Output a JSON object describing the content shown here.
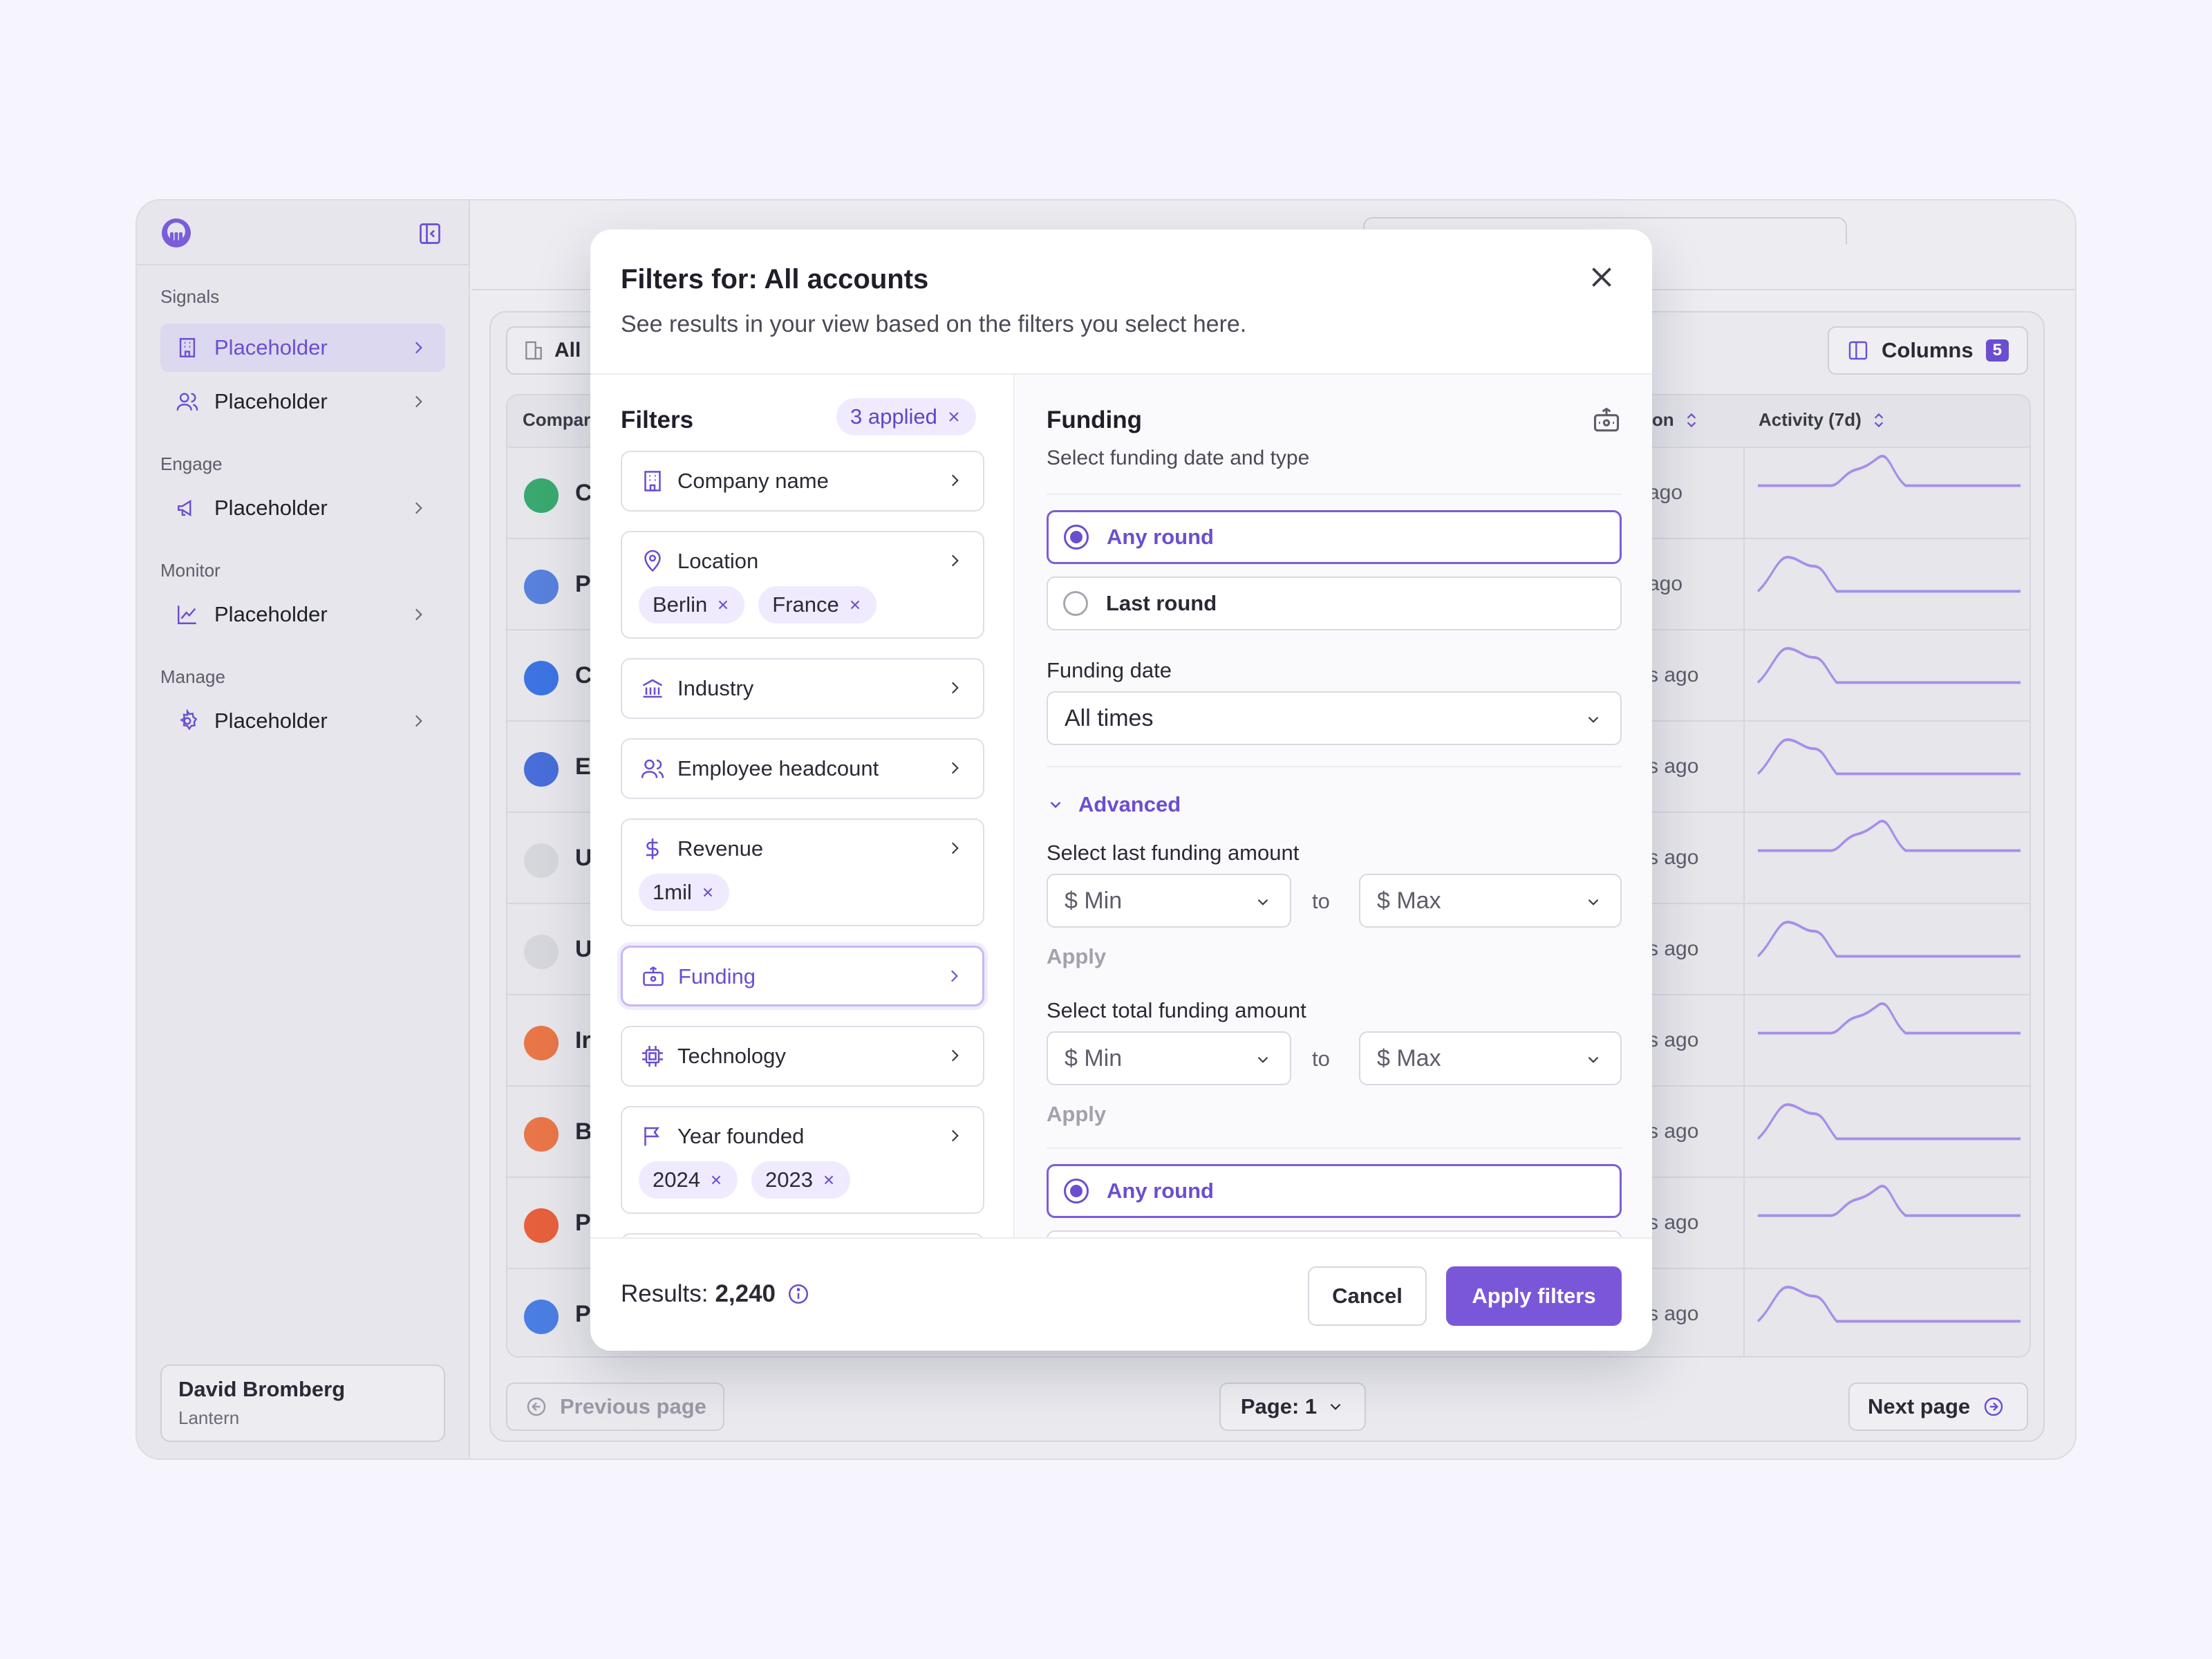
{
  "colors": {
    "accent": "#6b4ed0",
    "accent_soft": "#efeafd",
    "spark": "#a78ee8"
  },
  "sidebar": {
    "sections": [
      {
        "title": "Signals",
        "items": [
          {
            "label": "Placeholder",
            "icon": "building-icon",
            "active": true
          },
          {
            "label": "Placeholder",
            "icon": "users-icon"
          }
        ]
      },
      {
        "title": "Engage",
        "items": [
          {
            "label": "Placeholder",
            "icon": "megaphone-icon"
          }
        ]
      },
      {
        "title": "Monitor",
        "items": [
          {
            "label": "Placeholder",
            "icon": "chart-line-icon"
          }
        ]
      },
      {
        "title": "Manage",
        "items": [
          {
            "label": "Placeholder",
            "icon": "settings-icon"
          }
        ]
      }
    ],
    "user": {
      "name": "David Bromberg",
      "org": "Lantern"
    }
  },
  "background": {
    "view_label": "All",
    "columns_label": "Columns",
    "columns_count": "5",
    "headers": {
      "company": "Compar",
      "location": "tion",
      "activity": "Activity (7d)"
    },
    "rows": [
      {
        "initial": "C",
        "ago": "ago"
      },
      {
        "initial": "P",
        "ago": "ago"
      },
      {
        "initial": "C",
        "ago": "s ago"
      },
      {
        "initial": "E",
        "ago": "s ago"
      },
      {
        "initial": "U",
        "ago": "s ago"
      },
      {
        "initial": "U",
        "ago": "s ago"
      },
      {
        "initial": "Ir",
        "ago": "s ago"
      },
      {
        "initial": "B",
        "ago": "s ago"
      },
      {
        "initial": "P",
        "ago": "s ago"
      },
      {
        "initial": "P",
        "ago": "s ago"
      }
    ],
    "prev_page": "Previous page",
    "page": "Page: 1",
    "next_page": "Next page"
  },
  "modal": {
    "title": "Filters for: All accounts",
    "subtitle": "See results in your view based on the filters you select here.",
    "filters_title": "Filters",
    "applied": "3 applied",
    "filters": [
      {
        "label": "Company name",
        "icon": "building-icon",
        "tags": []
      },
      {
        "label": "Location",
        "icon": "map-pin-icon",
        "tags": [
          "Berlin",
          "France"
        ]
      },
      {
        "label": "Industry",
        "icon": "bank-icon",
        "tags": []
      },
      {
        "label": "Employee headcount",
        "icon": "users-icon",
        "tags": []
      },
      {
        "label": "Revenue",
        "icon": "dollar-icon",
        "tags": [
          "1mil"
        ]
      },
      {
        "label": "Funding",
        "icon": "funding-icon",
        "tags": [],
        "active": true
      },
      {
        "label": "Technology",
        "icon": "chip-icon",
        "tags": []
      },
      {
        "label": "Year founded",
        "icon": "flag-icon",
        "tags": [
          "2024",
          "2023"
        ]
      }
    ],
    "funding": {
      "title": "Funding",
      "subtitle": "Select funding date and type",
      "round_options": [
        "Any round",
        "Last round"
      ],
      "selected_round": "Any round",
      "date_label": "Funding date",
      "date_value": "All times",
      "advanced": "Advanced",
      "last_amount_label": "Select last funding amount",
      "total_amount_label": "Select total funding amount",
      "min_placeholder": "$ Min",
      "max_placeholder": "$ Max",
      "to": "to",
      "apply": "Apply",
      "second_round_option": "Any round"
    },
    "footer": {
      "results_label": "Results:",
      "results_value": "2,240",
      "cancel": "Cancel",
      "apply": "Apply filters"
    }
  }
}
